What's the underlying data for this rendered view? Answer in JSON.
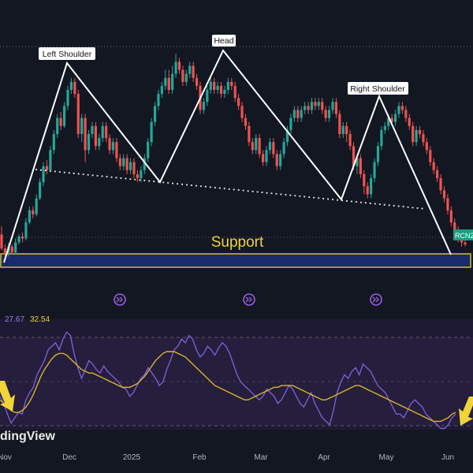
{
  "chart_data": {
    "type": "candlestick",
    "annotations": {
      "left_shoulder": "Left Shoulder",
      "head": "Head",
      "right_shoulder": "Right Shoulder",
      "support": "Support"
    },
    "price_tag": "RCN2",
    "watermark": "dingView",
    "rsi_values": {
      "rsi": "27.67",
      "ma": "32.54"
    },
    "x_tick_labels": [
      "Nov",
      "Dec",
      "2025",
      "Feb",
      "Mar",
      "Apr",
      "May",
      "Jun"
    ],
    "candles": [
      [
        35,
        31.5,
        37,
        31
      ],
      [
        31.5,
        30,
        32.5,
        29.5
      ],
      [
        30,
        32,
        33,
        29.5
      ],
      [
        32,
        30.5,
        32.5,
        30
      ],
      [
        30.5,
        33,
        34,
        30
      ],
      [
        33,
        34.5,
        35,
        32.5
      ],
      [
        34.5,
        34,
        35.5,
        33
      ],
      [
        34,
        38,
        39,
        33.5
      ],
      [
        38,
        41,
        42,
        37.5
      ],
      [
        41,
        40,
        42,
        39
      ],
      [
        40,
        44,
        45,
        39.5
      ],
      [
        44,
        48,
        49,
        43.5
      ],
      [
        48,
        52,
        53,
        47
      ],
      [
        52,
        51,
        53.5,
        50
      ],
      [
        51,
        56,
        57,
        50.5
      ],
      [
        56,
        60,
        61,
        55
      ],
      [
        60,
        64,
        65,
        59
      ],
      [
        64,
        62,
        65.5,
        61
      ],
      [
        62,
        67,
        68,
        61.5
      ],
      [
        67,
        71,
        72,
        66
      ],
      [
        71,
        73,
        74,
        70
      ],
      [
        73,
        70,
        74,
        69
      ],
      [
        70,
        60,
        71,
        59
      ],
      [
        60,
        64,
        65,
        58
      ],
      [
        64,
        56,
        65,
        53
      ],
      [
        56,
        60,
        61,
        55
      ],
      [
        60,
        62,
        63,
        59
      ],
      [
        62,
        57,
        63,
        56
      ],
      [
        57,
        59,
        60,
        56
      ],
      [
        59,
        62,
        63,
        58
      ],
      [
        62,
        59,
        63,
        58
      ],
      [
        59,
        56,
        60,
        55
      ],
      [
        56,
        58,
        59,
        55
      ],
      [
        58,
        54,
        59,
        53
      ],
      [
        54,
        52,
        55,
        51
      ],
      [
        52,
        54,
        55,
        51
      ],
      [
        54,
        51,
        55,
        50
      ],
      [
        51,
        53,
        54,
        50
      ],
      [
        53,
        50,
        54,
        49
      ],
      [
        50,
        49,
        51,
        48
      ],
      [
        49,
        51,
        52,
        48
      ],
      [
        51,
        54,
        55,
        50
      ],
      [
        54,
        58,
        59,
        53
      ],
      [
        58,
        63,
        64,
        57
      ],
      [
        63,
        67,
        68,
        62
      ],
      [
        67,
        70,
        71,
        66
      ],
      [
        70,
        72,
        73,
        69
      ],
      [
        72,
        74,
        76,
        71
      ],
      [
        74,
        71,
        76,
        70
      ],
      [
        71,
        75,
        77,
        70
      ],
      [
        75,
        78,
        80,
        74
      ],
      [
        78,
        76,
        79,
        75
      ],
      [
        76,
        73,
        77,
        72
      ],
      [
        73,
        75,
        76,
        72
      ],
      [
        75,
        77,
        78,
        74
      ],
      [
        77,
        74,
        78,
        73
      ],
      [
        74,
        72,
        75,
        71
      ],
      [
        72,
        66,
        73,
        65
      ],
      [
        66,
        68,
        69,
        65
      ],
      [
        68,
        71,
        72,
        67
      ],
      [
        71,
        73,
        74,
        70
      ],
      [
        73,
        71,
        74,
        70
      ],
      [
        71,
        72,
        73,
        70
      ],
      [
        72,
        70,
        73,
        69
      ],
      [
        70,
        71,
        72,
        69
      ],
      [
        71,
        73,
        74,
        70
      ],
      [
        73,
        72,
        74,
        71
      ],
      [
        72,
        69,
        73,
        68
      ],
      [
        69,
        67,
        70,
        66
      ],
      [
        67,
        64,
        68,
        63
      ],
      [
        64,
        62,
        65,
        61
      ],
      [
        62,
        58,
        63,
        57
      ],
      [
        58,
        56,
        59,
        55
      ],
      [
        56,
        59,
        60,
        55
      ],
      [
        59,
        55,
        60,
        54
      ],
      [
        55,
        53,
        56,
        52
      ],
      [
        53,
        56,
        57,
        52
      ],
      [
        56,
        58,
        59,
        55
      ],
      [
        58,
        55,
        59,
        54
      ],
      [
        55,
        52,
        56,
        51
      ],
      [
        52,
        55,
        56,
        51
      ],
      [
        55,
        58,
        59,
        54
      ],
      [
        58,
        61,
        62,
        57
      ],
      [
        61,
        64,
        65,
        60
      ],
      [
        64,
        66,
        67,
        63
      ],
      [
        66,
        64,
        67,
        63
      ],
      [
        64,
        66,
        67,
        63
      ],
      [
        66,
        67,
        68,
        65
      ],
      [
        67,
        66,
        68,
        65
      ],
      [
        66,
        68,
        69,
        65
      ],
      [
        68,
        67,
        69,
        66
      ],
      [
        67,
        68,
        69,
        66
      ],
      [
        68,
        66,
        69,
        65
      ],
      [
        66,
        64,
        67,
        63
      ],
      [
        64,
        66,
        67,
        63
      ],
      [
        66,
        68,
        69,
        65
      ],
      [
        68,
        65,
        69,
        64
      ],
      [
        65,
        60,
        66,
        59
      ],
      [
        60,
        62,
        63,
        59
      ],
      [
        62,
        60,
        63,
        58
      ],
      [
        60,
        57,
        61,
        56
      ],
      [
        57,
        52,
        58,
        51
      ],
      [
        52,
        54,
        55,
        50
      ],
      [
        54,
        50,
        55,
        49
      ],
      [
        50,
        47,
        51,
        45
      ],
      [
        47,
        45,
        48,
        44
      ],
      [
        45,
        49,
        50,
        44
      ],
      [
        49,
        53,
        54,
        48
      ],
      [
        53,
        57,
        58,
        52
      ],
      [
        57,
        61,
        62,
        56
      ],
      [
        61,
        62,
        63,
        60
      ],
      [
        62,
        64,
        65,
        61
      ],
      [
        64,
        63,
        65,
        62
      ],
      [
        63,
        65,
        66,
        62
      ],
      [
        65,
        67,
        68,
        64
      ],
      [
        67,
        66,
        68,
        65
      ],
      [
        66,
        64,
        67,
        63
      ],
      [
        64,
        62,
        65,
        61
      ],
      [
        62,
        58,
        63,
        57
      ],
      [
        58,
        61,
        62,
        57
      ],
      [
        61,
        60,
        62,
        59
      ],
      [
        60,
        58,
        61,
        57
      ],
      [
        58,
        56,
        59,
        55
      ],
      [
        56,
        53,
        57,
        52
      ],
      [
        53,
        51,
        54,
        50
      ],
      [
        51,
        49,
        52,
        48
      ],
      [
        49,
        46,
        50,
        45
      ],
      [
        46,
        44,
        47,
        43
      ],
      [
        44,
        41,
        45,
        40
      ],
      [
        41,
        38,
        42,
        37
      ],
      [
        38,
        36,
        39,
        35
      ],
      [
        36,
        34,
        37,
        33
      ],
      [
        34,
        33,
        35,
        32
      ],
      [
        33,
        32.5,
        34,
        32
      ]
    ],
    "rsi": [
      40,
      36,
      30,
      25,
      28,
      31,
      30,
      38,
      42,
      45,
      52,
      56,
      60,
      66,
      68,
      70,
      66,
      72,
      76,
      74,
      64,
      56,
      50,
      55,
      60,
      58,
      55,
      53,
      57,
      54,
      52,
      50,
      48,
      45,
      44,
      40,
      42,
      46,
      50,
      52,
      56,
      53,
      50,
      46,
      48,
      55,
      60,
      66,
      68,
      72,
      70,
      74,
      72,
      66,
      62,
      64,
      68,
      66,
      63,
      67,
      70,
      68,
      64,
      58,
      52,
      48,
      46,
      44,
      42,
      40,
      38,
      40,
      44,
      42,
      40,
      36,
      38,
      42,
      46,
      44,
      40,
      36,
      34,
      38,
      42,
      36,
      32,
      28,
      26,
      24,
      32,
      42,
      48,
      52,
      50,
      54,
      56,
      52,
      58,
      56,
      54,
      50,
      46,
      44,
      42,
      38,
      34,
      30,
      30,
      28,
      32,
      36,
      38,
      36,
      34,
      30,
      28,
      26,
      24,
      22,
      22,
      24,
      28,
      30
    ],
    "rsi_ma": [
      38,
      36,
      34,
      32,
      31,
      31,
      32,
      34,
      37,
      41,
      46,
      51,
      55,
      58,
      61,
      63,
      64,
      64,
      63,
      61,
      59,
      57,
      55,
      54,
      53,
      53,
      52,
      51,
      50,
      49,
      48,
      47,
      46,
      45,
      45,
      45,
      46,
      47,
      49,
      51,
      54,
      57,
      60,
      62,
      64,
      65,
      65,
      65,
      64,
      63,
      62,
      60,
      58,
      56,
      54,
      52,
      50,
      48,
      46,
      45,
      44,
      43,
      42,
      41,
      40,
      39,
      38,
      38,
      39,
      40,
      41,
      42,
      43,
      44,
      45,
      45,
      46,
      46,
      46,
      46,
      45,
      44,
      43,
      42,
      41,
      40,
      39,
      38,
      38,
      39,
      40,
      41,
      42,
      43,
      44,
      45,
      46,
      46,
      45,
      44,
      43,
      42,
      41,
      40,
      39,
      38,
      37,
      36,
      35,
      34,
      33,
      32,
      31,
      30,
      29,
      28,
      27,
      26,
      26,
      26,
      27,
      28,
      30,
      31
    ]
  }
}
